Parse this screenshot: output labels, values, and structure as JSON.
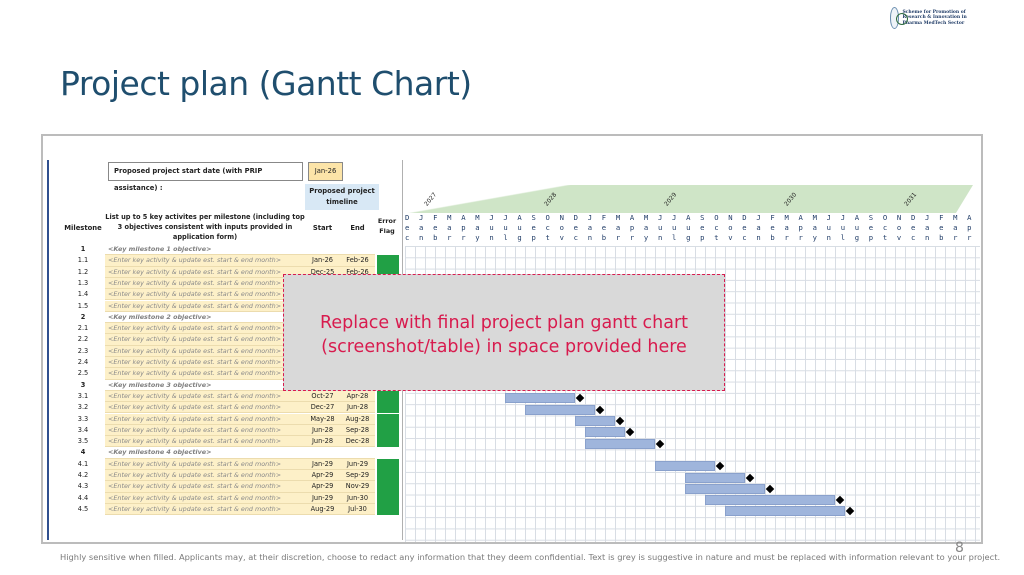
{
  "slide": {
    "title": "Project plan (Gantt Chart)",
    "page_number": "8",
    "footer": "Highly sensitive when filled. Applicants may, at their discretion, choose to redact any information that they deem confidential. Text is grey is suggestive in nature and must be replaced with information relevant to your project.",
    "logo_text": "Scheme for Promotion of Research & Innovation in Pharma MedTech Sector"
  },
  "sheet": {
    "start_label": "Proposed project start date (with PRIP assistance) :",
    "start_value": "Jan-26",
    "timeline_header": "Proposed project timeline",
    "col_milestone": "Milestone",
    "col_activities": "List up to 5 key activites per milestone (including top 3 objectives consistent with inputs provided in application form)",
    "col_start": "Start",
    "col_end": "End",
    "col_error": "Error Flag",
    "years": [
      "2027",
      "2028",
      "2029",
      "2030",
      "2031"
    ],
    "month_row1": "D J F M A M J J A S O N D J F M A M J J A S O N D J F M A M J J A S O N D J F M A M J J A S O N D J F M A M",
    "month_row2": "e a e a p a u u u e c o e a e a p a u u u e c o e a e a p a u u u e c o e a e a p a u u u e c o e a e a p a",
    "month_row3": "c n b r r y n l g p t v c n b r r y n l g p t v c n b r r y n l g p t v c n b r r y n l g p t v c n b r r y",
    "rows": [
      {
        "ms": "1",
        "text": "<Key milestone 1 objective>",
        "obj": true,
        "start": "",
        "end": ""
      },
      {
        "ms": "1.1",
        "text": "<Enter key activity & update est. start & end month>",
        "obj": false,
        "start": "Jan-26",
        "end": "Feb-26"
      },
      {
        "ms": "1.2",
        "text": "<Enter key activity & update est. start & end month>",
        "obj": false,
        "start": "Dec-25",
        "end": "Feb-26"
      },
      {
        "ms": "1.3",
        "text": "<Enter key activity & update est. start & end month>",
        "obj": false,
        "start": "",
        "end": ""
      },
      {
        "ms": "1.4",
        "text": "<Enter key activity & update est. start & end month>",
        "obj": false,
        "start": "",
        "end": ""
      },
      {
        "ms": "1.5",
        "text": "<Enter key activity & update est. start & end month>",
        "obj": false,
        "start": "",
        "end": ""
      },
      {
        "ms": "2",
        "text": "<Key milestone 2 objective>",
        "obj": true,
        "start": "",
        "end": ""
      },
      {
        "ms": "2.1",
        "text": "<Enter key activity & update est. start & end month>",
        "obj": false,
        "start": "",
        "end": ""
      },
      {
        "ms": "2.2",
        "text": "<Enter key activity & update est. start & end month>",
        "obj": false,
        "start": "",
        "end": ""
      },
      {
        "ms": "2.3",
        "text": "<Enter key activity & update est. start & end month>",
        "obj": false,
        "start": "",
        "end": ""
      },
      {
        "ms": "2.4",
        "text": "<Enter key activity & update est. start & end month>",
        "obj": false,
        "start": "",
        "end": ""
      },
      {
        "ms": "2.5",
        "text": "<Enter key activity & update est. start & end month>",
        "obj": false,
        "start": "",
        "end": ""
      },
      {
        "ms": "3",
        "text": "<Key milestone 3 objective>",
        "obj": true,
        "start": "",
        "end": ""
      },
      {
        "ms": "3.1",
        "text": "<Enter key activity & update est. start & end month>",
        "obj": false,
        "start": "Oct-27",
        "end": "Apr-28"
      },
      {
        "ms": "3.2",
        "text": "<Enter key activity & update est. start & end month>",
        "obj": false,
        "start": "Dec-27",
        "end": "Jun-28"
      },
      {
        "ms": "3.3",
        "text": "<Enter key activity & update est. start & end month>",
        "obj": false,
        "start": "May-28",
        "end": "Aug-28"
      },
      {
        "ms": "3.4",
        "text": "<Enter key activity & update est. start & end month>",
        "obj": false,
        "start": "Jun-28",
        "end": "Sep-28"
      },
      {
        "ms": "3.5",
        "text": "<Enter key activity & update est. start & end month>",
        "obj": false,
        "start": "Jun-28",
        "end": "Dec-28"
      },
      {
        "ms": "4",
        "text": "<Key milestone 4 objective>",
        "obj": true,
        "start": "",
        "end": ""
      },
      {
        "ms": "4.1",
        "text": "<Enter key activity & update est. start & end month>",
        "obj": false,
        "start": "Jan-29",
        "end": "Jun-29"
      },
      {
        "ms": "4.2",
        "text": "<Enter key activity & update est. start & end month>",
        "obj": false,
        "start": "Apr-29",
        "end": "Sep-29"
      },
      {
        "ms": "4.3",
        "text": "<Enter key activity & update est. start & end month>",
        "obj": false,
        "start": "Apr-29",
        "end": "Nov-29"
      },
      {
        "ms": "4.4",
        "text": "<Enter key activity & update est. start & end month>",
        "obj": false,
        "start": "Jun-29",
        "end": "Jun-30"
      },
      {
        "ms": "4.5",
        "text": "<Enter key activity & update est. start & end month>",
        "obj": false,
        "start": "Aug-29",
        "end": "Jul-30"
      }
    ]
  },
  "placeholder": {
    "line1": "Replace with final project plan gantt chart",
    "line2": "(screenshot/table) in space provided here"
  },
  "colors": {
    "accent": "#1f4e6e",
    "flag_ok": "#21a045",
    "bar": "#9fb5dc",
    "placeholder_border": "#d81b4e"
  }
}
